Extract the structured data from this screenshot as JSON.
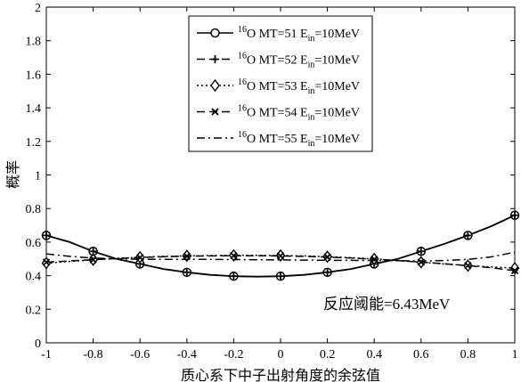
{
  "chart_data": {
    "type": "line",
    "xlabel": "质心系下中子出射角度的余弦值",
    "ylabel": "概率",
    "xlim": [
      -1,
      1
    ],
    "ylim": [
      0,
      2
    ],
    "xticks": [
      "-1",
      "-0.8",
      "-0.6",
      "-0.4",
      "-0.2",
      "0",
      "0.2",
      "0.4",
      "0.6",
      "0.8",
      "1"
    ],
    "yticks": [
      "0",
      "0.2",
      "0.4",
      "0.6",
      "0.8",
      "1",
      "1.2",
      "1.4",
      "1.6",
      "1.8",
      "2"
    ],
    "grid": false,
    "legend_position": "top-center",
    "annotation": "反应阈能=6.43MeV",
    "x": [
      -1,
      -0.9,
      -0.8,
      -0.7,
      -0.6,
      -0.5,
      -0.4,
      -0.3,
      -0.2,
      -0.1,
      0,
      0.1,
      0.2,
      0.3,
      0.4,
      0.5,
      0.6,
      0.7,
      0.8,
      0.9,
      1
    ],
    "series": [
      {
        "name": "16O MT=51 Ein=10MeV",
        "name_parts": {
          "sup": "16",
          "base": "O MT=51 E",
          "sub": "in",
          "tail": "=10MeV"
        },
        "marker": "circle",
        "dash": "solid",
        "values": [
          0.64,
          0.6,
          0.545,
          0.5,
          0.47,
          0.44,
          0.42,
          0.405,
          0.397,
          0.394,
          0.397,
          0.405,
          0.42,
          0.44,
          0.47,
          0.5,
          0.545,
          0.59,
          0.64,
          0.695,
          0.76
        ]
      },
      {
        "name": "16O MT=52 Ein=10MeV",
        "name_parts": {
          "sup": "16",
          "base": "O MT=52 E",
          "sub": "in",
          "tail": "=10MeV"
        },
        "marker": "plus",
        "dash": "dashed",
        "values": [
          0.64,
          0.6,
          0.545,
          0.5,
          0.47,
          0.44,
          0.42,
          0.405,
          0.397,
          0.394,
          0.397,
          0.405,
          0.42,
          0.44,
          0.47,
          0.5,
          0.545,
          0.59,
          0.64,
          0.695,
          0.76
        ]
      },
      {
        "name": "16O MT=53 Ein=10MeV",
        "name_parts": {
          "sup": "16",
          "base": "O MT=53 E",
          "sub": "in",
          "tail": "=10MeV"
        },
        "marker": "diamond",
        "dash": "dotted",
        "values": [
          0.475,
          0.485,
          0.495,
          0.503,
          0.51,
          0.515,
          0.518,
          0.52,
          0.521,
          0.521,
          0.52,
          0.518,
          0.513,
          0.507,
          0.5,
          0.49,
          0.48,
          0.47,
          0.46,
          0.452,
          0.445
        ]
      },
      {
        "name": "16O MT=54 Ein=10MeV",
        "name_parts": {
          "sup": "16",
          "base": "O MT=54 E",
          "sub": "in",
          "tail": "=10MeV"
        },
        "marker": "x",
        "dash": "dashed",
        "values": [
          0.48,
          0.488,
          0.495,
          0.502,
          0.508,
          0.513,
          0.516,
          0.518,
          0.519,
          0.519,
          0.518,
          0.515,
          0.511,
          0.505,
          0.498,
          0.49,
          0.481,
          0.471,
          0.46,
          0.447,
          0.43
        ]
      },
      {
        "name": "16O MT=55 Ein=10MeV",
        "name_parts": {
          "sup": "16",
          "base": "O MT=55 E",
          "sub": "in",
          "tail": "=10MeV"
        },
        "marker": "none",
        "dash": "dashdot",
        "values": [
          0.53,
          0.515,
          0.505,
          0.5,
          0.498,
          0.497,
          0.497,
          0.497,
          0.496,
          0.495,
          0.494,
          0.493,
          0.492,
          0.491,
          0.49,
          0.489,
          0.488,
          0.49,
          0.497,
          0.512,
          0.54
        ]
      }
    ]
  }
}
